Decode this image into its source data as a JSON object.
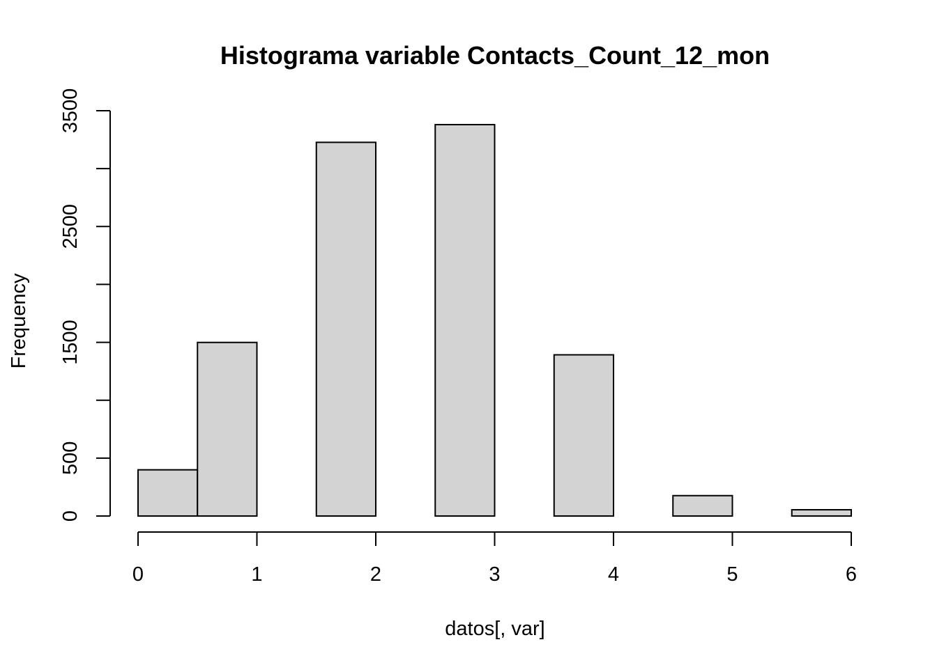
{
  "chart_data": {
    "type": "bar",
    "title": "Histograma variable Contacts_Count_12_mon",
    "xlabel": "datos[, var]",
    "ylabel": "Frequency",
    "bins": [
      {
        "x0": 0.0,
        "x1": 0.5,
        "count": 399
      },
      {
        "x0": 0.5,
        "x1": 1.0,
        "count": 1499
      },
      {
        "x0": 1.0,
        "x1": 1.5,
        "count": 0
      },
      {
        "x0": 1.5,
        "x1": 2.0,
        "count": 3227
      },
      {
        "x0": 2.0,
        "x1": 2.5,
        "count": 0
      },
      {
        "x0": 2.5,
        "x1": 3.0,
        "count": 3380
      },
      {
        "x0": 3.0,
        "x1": 3.5,
        "count": 0
      },
      {
        "x0": 3.5,
        "x1": 4.0,
        "count": 1392
      },
      {
        "x0": 4.0,
        "x1": 4.5,
        "count": 0
      },
      {
        "x0": 4.5,
        "x1": 5.0,
        "count": 176
      },
      {
        "x0": 5.0,
        "x1": 5.5,
        "count": 0
      },
      {
        "x0": 5.5,
        "x1": 6.0,
        "count": 54
      }
    ],
    "xlim": [
      0,
      6
    ],
    "ylim": [
      0,
      3500
    ],
    "x_ticks": [
      0,
      1,
      2,
      3,
      4,
      5,
      6
    ],
    "y_ticks_labeled": [
      0,
      500,
      1500,
      2500,
      3500
    ],
    "y_ticks_all": [
      0,
      500,
      1000,
      1500,
      2000,
      2500,
      3000,
      3500
    ],
    "bar_fill": "#d3d3d3",
    "bar_stroke": "#000000",
    "grid": false,
    "legend": "none"
  }
}
